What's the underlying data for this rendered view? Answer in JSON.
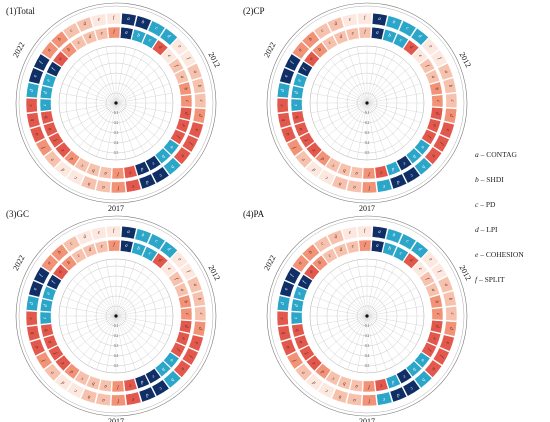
{
  "panels": [
    {
      "title": "(1)Total",
      "year_labels": [
        "2022",
        "2012",
        "2017"
      ]
    },
    {
      "title": "(2)CP",
      "year_labels": [
        "2022",
        "2012",
        "2017"
      ]
    },
    {
      "title": "(3)GC",
      "year_labels": [
        "2022",
        "2012",
        "2017"
      ]
    },
    {
      "title": "(4)PA",
      "year_labels": [
        "2022",
        "2012",
        "2017"
      ]
    }
  ],
  "legend": [
    {
      "key": "a",
      "sep": " – ",
      "label": "CONTAG"
    },
    {
      "key": "b",
      "sep": " – ",
      "label": "SHDI"
    },
    {
      "key": "c",
      "sep": " – ",
      "label": "PD"
    },
    {
      "key": "d",
      "sep": " – ",
      "label": "LPI"
    },
    {
      "key": "e",
      "sep": " – ",
      "label": "COHESION"
    },
    {
      "key": "f",
      "sep": " – ",
      "label": "SPLIT"
    }
  ],
  "chart_data": {
    "type": "heatmap",
    "ring_rows": [
      "outer",
      "inner"
    ],
    "cell_letters_order": [
      "a",
      "b",
      "c",
      "d",
      "e",
      "f"
    ],
    "radial_ticks": [
      "0.1",
      "0.2",
      "0.3",
      "0.4",
      "0.5"
    ],
    "palette": [
      "#fce8df",
      "#f7c2ad",
      "#f29276",
      "#e2584c",
      "#2ba6c9",
      "#0f2f66"
    ],
    "sectors_per_ring": 36,
    "panels": [
      {
        "name": "(1)Total",
        "outer_levels": [
          5,
          5,
          4,
          4,
          0,
          0,
          1,
          1,
          1,
          2,
          3,
          3,
          3,
          4,
          5,
          5,
          3,
          2,
          1,
          1,
          0,
          0,
          1,
          2,
          3,
          3,
          3,
          4,
          5,
          5,
          2,
          2,
          1,
          1,
          0,
          0
        ],
        "inner_levels": [
          5,
          4,
          4,
          3,
          0,
          1,
          1,
          2,
          2,
          3,
          3,
          3,
          4,
          4,
          5,
          5,
          3,
          2,
          1,
          1,
          1,
          2,
          3,
          3,
          3,
          3,
          4,
          4,
          4,
          5,
          3,
          2,
          1,
          1,
          1,
          2
        ]
      },
      {
        "name": "(2)CP",
        "outer_levels": [
          5,
          4,
          4,
          4,
          0,
          0,
          1,
          1,
          1,
          2,
          3,
          3,
          3,
          4,
          5,
          5,
          4,
          2,
          1,
          1,
          0,
          0,
          1,
          2,
          3,
          3,
          3,
          4,
          5,
          5,
          2,
          2,
          1,
          1,
          0,
          0
        ],
        "inner_levels": [
          5,
          4,
          4,
          3,
          0,
          1,
          1,
          2,
          2,
          3,
          3,
          3,
          4,
          4,
          5,
          4,
          3,
          2,
          1,
          1,
          1,
          2,
          3,
          3,
          3,
          3,
          4,
          4,
          4,
          5,
          3,
          2,
          1,
          1,
          1,
          1
        ]
      },
      {
        "name": "(3)GC",
        "outer_levels": [
          5,
          4,
          4,
          4,
          0,
          0,
          1,
          1,
          1,
          2,
          3,
          3,
          3,
          4,
          5,
          5,
          3,
          2,
          1,
          1,
          0,
          0,
          1,
          2,
          3,
          3,
          3,
          4,
          5,
          5,
          2,
          2,
          1,
          0,
          0,
          0
        ],
        "inner_levels": [
          5,
          4,
          4,
          3,
          0,
          1,
          1,
          2,
          2,
          3,
          3,
          3,
          4,
          4,
          5,
          5,
          3,
          2,
          1,
          1,
          1,
          2,
          3,
          3,
          3,
          3,
          4,
          4,
          4,
          5,
          3,
          2,
          1,
          1,
          1,
          2
        ]
      },
      {
        "name": "(4)PA",
        "outer_levels": [
          5,
          4,
          4,
          4,
          0,
          0,
          1,
          1,
          1,
          2,
          3,
          3,
          3,
          4,
          5,
          5,
          4,
          2,
          1,
          1,
          0,
          0,
          1,
          2,
          3,
          3,
          3,
          4,
          5,
          5,
          2,
          2,
          1,
          1,
          0,
          0
        ],
        "inner_levels": [
          5,
          4,
          4,
          3,
          0,
          1,
          1,
          2,
          2,
          3,
          3,
          3,
          4,
          4,
          5,
          4,
          3,
          2,
          1,
          1,
          1,
          2,
          3,
          3,
          3,
          3,
          4,
          4,
          4,
          5,
          3,
          2,
          1,
          1,
          1,
          2
        ]
      }
    ]
  }
}
